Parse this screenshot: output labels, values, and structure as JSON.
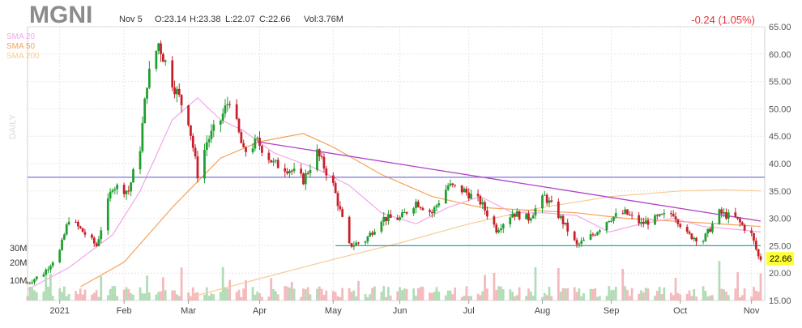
{
  "header": {
    "ticker": "MGNI",
    "date": "Nov 5",
    "open": "O:23.14",
    "high": "H:23.38",
    "low": "L:22.07",
    "close": "C:22.66",
    "volume": "Vol:3.76M",
    "change": "-0.24 (1.05%)",
    "timeframe": "DAILY"
  },
  "legend": [
    {
      "label": "SMA 20",
      "color": "#f2a6e8"
    },
    {
      "label": "SMA 50",
      "color": "#f4a35a"
    },
    {
      "label": "SMA 200",
      "color": "#f6cc96"
    }
  ],
  "colors": {
    "up": "#1f9e2f",
    "down": "#c8202a",
    "trend_line": "#b03fc9",
    "horizontal_line": "#7b77d4",
    "support_line": "#2aa6a6",
    "price_tag_bg": "#ffff33"
  },
  "chart_data": {
    "type": "candlestick",
    "x_ticks": [
      "2021",
      "Feb",
      "Mar",
      "Apr",
      "May",
      "Jun",
      "Jul",
      "Aug",
      "Sep",
      "Oct",
      "Nov"
    ],
    "y_ticks": [
      "65.00",
      "60.00",
      "55.00",
      "50.00",
      "45.00",
      "40.00",
      "35.00",
      "30.00",
      "25.00",
      "20.00",
      "15.00"
    ],
    "y_range": [
      15,
      65
    ],
    "volume_ticks": [
      "30M",
      "20M",
      "10M"
    ],
    "last_price_label": "22.66",
    "last_price": 22.66,
    "trend_line": {
      "from": [
        "2021-03-31",
        44.0
      ],
      "to": [
        "2021-11-05",
        29.5
      ]
    },
    "horizontal_line_level": 37.5,
    "support_line": {
      "from": [
        "2021-05-04",
        25.0
      ],
      "to": [
        "2021-11-05",
        25.0
      ]
    },
    "price_anchors": [
      [
        "2020-12-21",
        18.2
      ],
      [
        "2020-12-28",
        20.0
      ],
      [
        "2021-01-04",
        24.0
      ],
      [
        "2021-01-08",
        30.0
      ],
      [
        "2021-01-13",
        28.0
      ],
      [
        "2021-01-20",
        25.0
      ],
      [
        "2021-01-27",
        36.0
      ],
      [
        "2021-02-03",
        35.0
      ],
      [
        "2021-02-08",
        43.0
      ],
      [
        "2021-02-11",
        55.0
      ],
      [
        "2021-02-16",
        62.0
      ],
      [
        "2021-02-22",
        55.0
      ],
      [
        "2021-03-01",
        48.0
      ],
      [
        "2021-03-05",
        38.0
      ],
      [
        "2021-03-09",
        44.0
      ],
      [
        "2021-03-15",
        48.0
      ],
      [
        "2021-03-19",
        52.0
      ],
      [
        "2021-03-25",
        42.0
      ],
      [
        "2021-03-31",
        44.0
      ],
      [
        "2021-04-07",
        40.0
      ],
      [
        "2021-04-14",
        39.0
      ],
      [
        "2021-04-20",
        37.0
      ],
      [
        "2021-04-26",
        42.0
      ],
      [
        "2021-05-03",
        36.0
      ],
      [
        "2021-05-10",
        25.0
      ],
      [
        "2021-05-17",
        26.0
      ],
      [
        "2021-05-24",
        30.0
      ],
      [
        "2021-06-01",
        30.0
      ],
      [
        "2021-06-08",
        33.0
      ],
      [
        "2021-06-15",
        31.0
      ],
      [
        "2021-06-22",
        36.0
      ],
      [
        "2021-06-29",
        35.0
      ],
      [
        "2021-07-06",
        33.0
      ],
      [
        "2021-07-13",
        28.0
      ],
      [
        "2021-07-20",
        31.0
      ],
      [
        "2021-07-27",
        30.0
      ],
      [
        "2021-08-03",
        34.0
      ],
      [
        "2021-08-10",
        30.0
      ],
      [
        "2021-08-17",
        25.0
      ],
      [
        "2021-08-24",
        27.0
      ],
      [
        "2021-08-31",
        30.0
      ],
      [
        "2021-09-07",
        31.0
      ],
      [
        "2021-09-14",
        29.0
      ],
      [
        "2021-09-21",
        30.0
      ],
      [
        "2021-09-28",
        31.0
      ],
      [
        "2021-10-04",
        27.0
      ],
      [
        "2021-10-11",
        26.0
      ],
      [
        "2021-10-18",
        31.0
      ],
      [
        "2021-10-25",
        30.0
      ],
      [
        "2021-11-01",
        27.0
      ],
      [
        "2021-11-04",
        23.0
      ],
      [
        "2021-11-05",
        22.66
      ]
    ],
    "sma20": [
      [
        "2020-12-21",
        17.0
      ],
      [
        "2021-01-08",
        21.0
      ],
      [
        "2021-01-27",
        27.0
      ],
      [
        "2021-02-08",
        35.0
      ],
      [
        "2021-02-22",
        48.0
      ],
      [
        "2021-03-05",
        52.0
      ],
      [
        "2021-03-15",
        48.0
      ],
      [
        "2021-03-25",
        46.0
      ],
      [
        "2021-04-07",
        42.0
      ],
      [
        "2021-04-26",
        39.0
      ],
      [
        "2021-05-10",
        36.0
      ],
      [
        "2021-05-24",
        31.0
      ],
      [
        "2021-06-08",
        29.0
      ],
      [
        "2021-06-22",
        32.0
      ],
      [
        "2021-07-06",
        34.0
      ],
      [
        "2021-07-20",
        31.0
      ],
      [
        "2021-08-03",
        31.0
      ],
      [
        "2021-08-17",
        30.5
      ],
      [
        "2021-08-31",
        27.5
      ],
      [
        "2021-09-14",
        29.0
      ],
      [
        "2021-09-28",
        30.0
      ],
      [
        "2021-10-11",
        28.5
      ],
      [
        "2021-10-25",
        28.0
      ],
      [
        "2021-11-05",
        27.5
      ]
    ],
    "sma50": [
      [
        "2021-01-13",
        17.5
      ],
      [
        "2021-02-01",
        22.0
      ],
      [
        "2021-02-22",
        32.0
      ],
      [
        "2021-03-15",
        41.0
      ],
      [
        "2021-04-01",
        44.0
      ],
      [
        "2021-04-20",
        45.5
      ],
      [
        "2021-05-03",
        43.0
      ],
      [
        "2021-05-24",
        38.0
      ],
      [
        "2021-06-15",
        34.0
      ],
      [
        "2021-07-06",
        32.0
      ],
      [
        "2021-07-27",
        31.5
      ],
      [
        "2021-08-17",
        31.0
      ],
      [
        "2021-09-07",
        30.0
      ],
      [
        "2021-09-28",
        29.5
      ],
      [
        "2021-10-18",
        29.0
      ],
      [
        "2021-11-05",
        28.5
      ]
    ],
    "sma200": [
      [
        "2021-03-01",
        15.5
      ],
      [
        "2021-04-01",
        19.0
      ],
      [
        "2021-05-03",
        22.5
      ],
      [
        "2021-06-01",
        25.5
      ],
      [
        "2021-07-01",
        29.0
      ],
      [
        "2021-08-02",
        32.0
      ],
      [
        "2021-09-01",
        34.0
      ],
      [
        "2021-10-01",
        35.0
      ],
      [
        "2021-10-20",
        35.2
      ],
      [
        "2021-11-05",
        35.0
      ]
    ]
  }
}
